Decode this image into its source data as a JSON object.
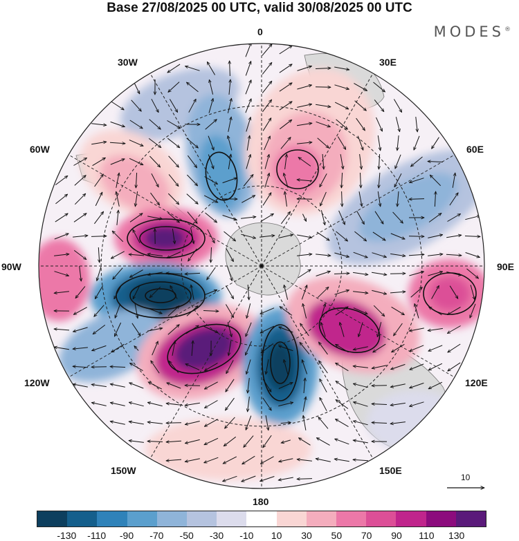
{
  "title": "Base 27/08/2025 00 UTC, valid 30/08/2025 00 UTC",
  "brand": {
    "name": "MODES",
    "mark": "®"
  },
  "longitude_labels": {
    "lon_0": "0",
    "lon_30e": "30E",
    "lon_60e": "60E",
    "lon_90e": "90E",
    "lon_120e": "120E",
    "lon_150e": "150E",
    "lon_180": "180",
    "lon_150w": "150W",
    "lon_120w": "120W",
    "lon_90w": "90W",
    "lon_60w": "60W",
    "lon_30w": "30W"
  },
  "reference_vector": {
    "label": "10"
  },
  "colorbar": {
    "colors": [
      "#0d3f5e",
      "#155f8c",
      "#2f82b9",
      "#5b9fcd",
      "#8fb4d9",
      "#b5c3df",
      "#dcdcec",
      "#ffffff",
      "#f9d6d4",
      "#f4adbd",
      "#ec78a8",
      "#dc4f97",
      "#c0258c",
      "#8c0c7d",
      "#5a1a7a"
    ],
    "tick_labels": [
      "-130",
      "-110",
      "-90",
      "-70",
      "-50",
      "-30",
      "-10",
      "10",
      "30",
      "50",
      "70",
      "90",
      "110",
      "130"
    ]
  },
  "colors": {
    "land": "#d9d9d9",
    "title": "#111111"
  }
}
